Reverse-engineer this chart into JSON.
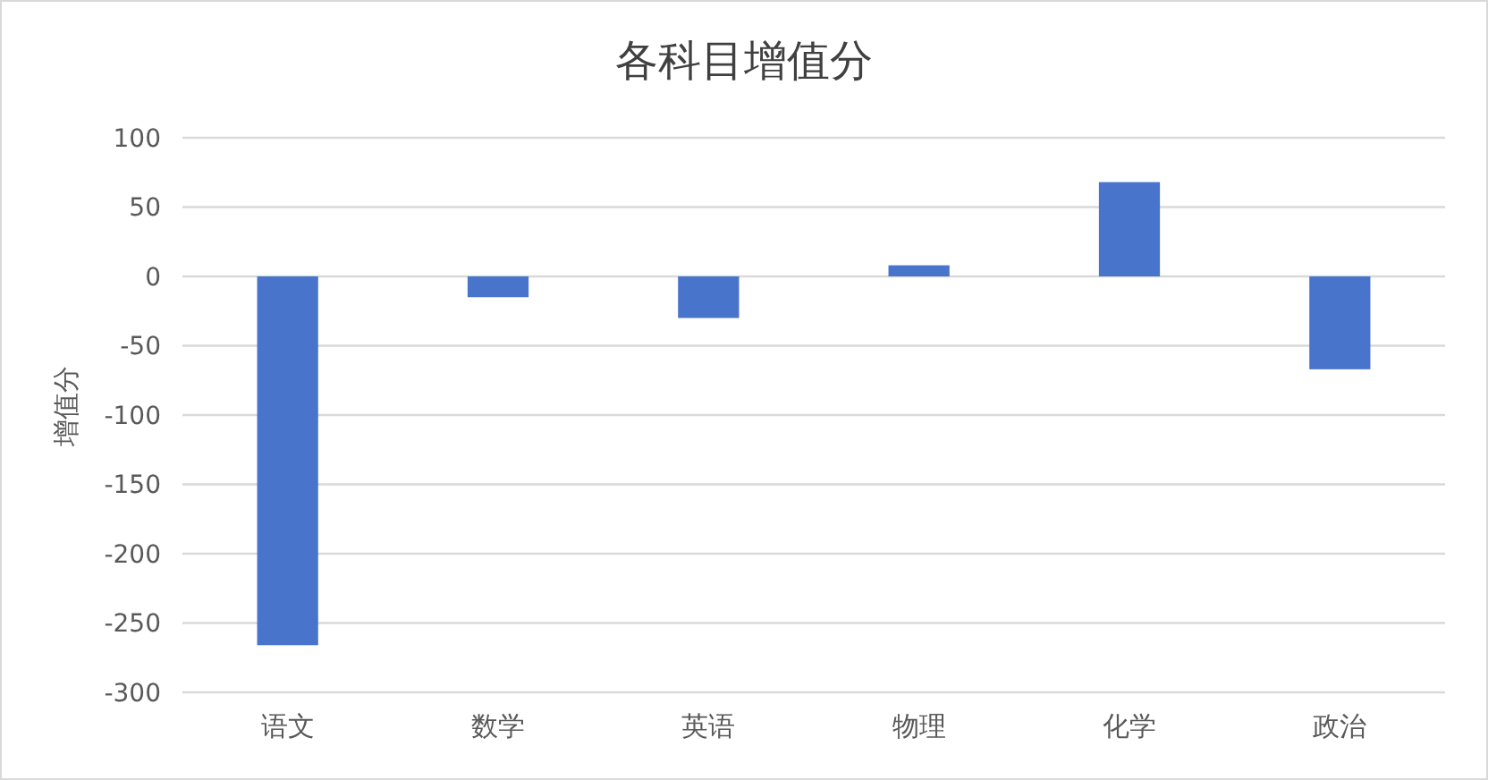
{
  "chart_data": {
    "type": "bar",
    "title": "各科目增值分",
    "ylabel": "增值分",
    "categories": [
      "语文",
      "数学",
      "英语",
      "物理",
      "化学",
      "政治"
    ],
    "values": [
      -266,
      -15,
      -30,
      8,
      68,
      -67
    ],
    "color": "#4874cb",
    "ylim": [
      -300,
      100
    ],
    "yticks": [
      -300,
      -250,
      -200,
      -150,
      -100,
      -50,
      0,
      50,
      100
    ],
    "grid": "y"
  }
}
